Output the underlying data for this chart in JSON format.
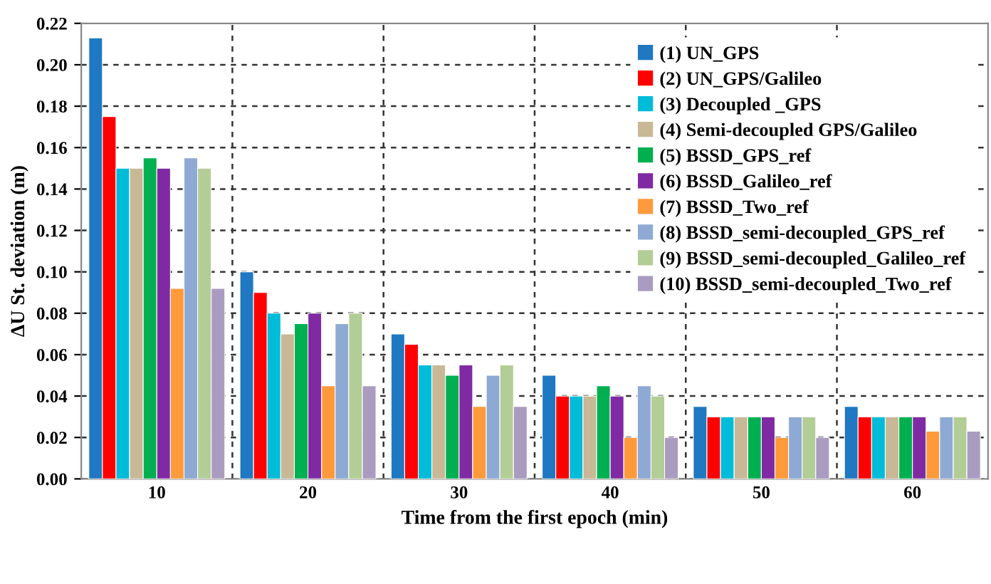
{
  "chart_data": {
    "type": "bar",
    "xlabel": "Time from the first epoch (min)",
    "ylabel": "ΔU St. deviation (m)",
    "categories": [
      "10",
      "20",
      "30",
      "40",
      "50",
      "60"
    ],
    "series": [
      {
        "name": "(1) UN_GPS",
        "color": "#1f78c1",
        "values": [
          0.213,
          0.1,
          0.07,
          0.05,
          0.035,
          0.035
        ]
      },
      {
        "name": "(2) UN_GPS/Galileo",
        "color": "#ff0000",
        "values": [
          0.175,
          0.09,
          0.065,
          0.04,
          0.03,
          0.03
        ]
      },
      {
        "name": "(3) Decoupled _GPS",
        "color": "#00bcd8",
        "values": [
          0.15,
          0.08,
          0.055,
          0.04,
          0.03,
          0.03
        ]
      },
      {
        "name": "(4) Semi-decoupled GPS/Galileo",
        "color": "#c8b896",
        "values": [
          0.15,
          0.07,
          0.055,
          0.04,
          0.03,
          0.03
        ]
      },
      {
        "name": "(5) BSSD_GPS_ref",
        "color": "#00b050",
        "values": [
          0.155,
          0.075,
          0.05,
          0.045,
          0.03,
          0.03
        ]
      },
      {
        "name": "(6) BSSD_Galileo_ref",
        "color": "#7f2aa3",
        "values": [
          0.15,
          0.08,
          0.055,
          0.04,
          0.03,
          0.03
        ]
      },
      {
        "name": "(7) BSSD_Two_ref",
        "color": "#ff9a3c",
        "values": [
          0.092,
          0.045,
          0.035,
          0.02,
          0.02,
          0.023
        ]
      },
      {
        "name": "(8) BSSD_semi-decoupled_GPS_ref",
        "color": "#8eaad4",
        "values": [
          0.155,
          0.075,
          0.05,
          0.045,
          0.03,
          0.03
        ]
      },
      {
        "name": "(9) BSSD_semi-decoupled_Galileo_ref",
        "color": "#b3cd96",
        "values": [
          0.15,
          0.08,
          0.055,
          0.04,
          0.03,
          0.03
        ]
      },
      {
        "name": "(10) BSSD_semi-decoupled_Two_ref",
        "color": "#aa9cc0",
        "values": [
          0.092,
          0.045,
          0.035,
          0.02,
          0.02,
          0.023
        ]
      }
    ],
    "ylim": [
      0,
      0.22
    ],
    "yticks": [
      {
        "value": 0,
        "label": "0.00"
      },
      {
        "value": 0.02,
        "label": "0.02"
      },
      {
        "value": 0.04,
        "label": "0.04"
      },
      {
        "value": 0.06,
        "label": "0.06"
      },
      {
        "value": 0.08,
        "label": "0.08"
      },
      {
        "value": 0.1,
        "label": "0.10"
      },
      {
        "value": 0.12,
        "label": "0.12"
      },
      {
        "value": 0.14,
        "label": "0.14"
      },
      {
        "value": 0.16,
        "label": "0.16"
      },
      {
        "value": 0.18,
        "label": "0.18"
      },
      {
        "value": 0.2,
        "label": "0.20"
      },
      {
        "value": 0.22,
        "label": "0.22"
      }
    ],
    "grid": true,
    "legend": "top right"
  }
}
